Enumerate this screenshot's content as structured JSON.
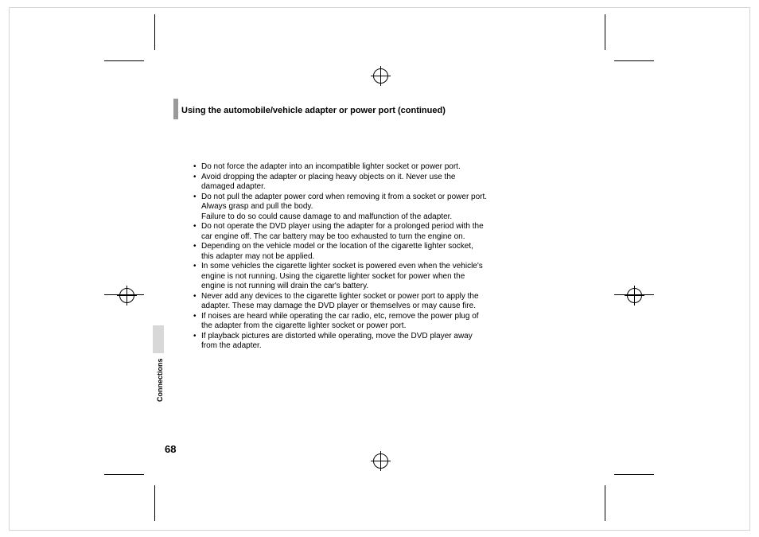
{
  "title": "Using the automobile/vehicle adapter or power port (continued)",
  "sidebar_label": "Connections",
  "page_number": "68",
  "bullets": [
    "Do not force the adapter into an incompatible lighter socket or power port.",
    "Avoid dropping the adapter or placing heavy objects on it. Never use the damaged adapter.",
    "Do not pull the adapter power cord when removing it from a socket or power port.\nAlways grasp and pull the body.\nFailure to do so could cause damage to and malfunction of the adapter.",
    "Do not operate the DVD player using the adapter for a prolonged period with the car engine off. The car battery may be too exhausted to turn the engine on.",
    "Depending on the vehicle model or the location of the cigarette lighter socket, this adapter may not be applied.",
    "In some vehicles the cigarette lighter socket is powered even when the vehicle's engine is not running. Using the cigarette lighter socket for power when the engine is not running will drain the car's battery.",
    "Never add any devices to the cigarette lighter socket or power port to apply the adapter. These may damage the DVD player or themselves or may cause fire.",
    "If noises are heard while operating the car radio, etc, remove the power plug of the adapter from the cigarette lighter socket or power port.",
    "If playback pictures are distorted while operating, move the DVD player away from the adapter."
  ],
  "colors": {
    "title_bar": "#9a9a9a",
    "side_block": "#d8d8d8",
    "text": "#000000",
    "background": "#ffffff",
    "outer_border": "#d5d5d5"
  }
}
